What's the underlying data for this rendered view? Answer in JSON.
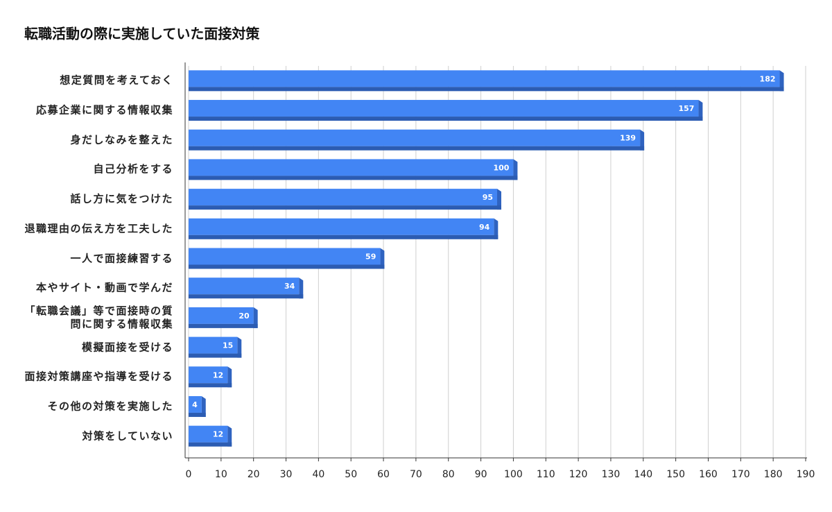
{
  "chart_data": {
    "type": "bar",
    "orientation": "horizontal",
    "title": "転職活動の際に実施していた面接対策",
    "categories": [
      "想定質問を考えておく",
      "応募企業に関する情報収集",
      "身だしなみを整えた",
      "自己分析をする",
      "話し方に気をつけた",
      "退職理由の伝え方を工夫した",
      "一人で面接練習する",
      "本やサイト・動画で学んだ",
      "「転職会議」等で面接時の質問に関する情報収集",
      "模擬面接を受ける",
      "面接対策講座や指導を受ける",
      "その他の対策を実施した",
      "対策をしていない"
    ],
    "values": [
      182,
      157,
      139,
      100,
      95,
      94,
      59,
      34,
      20,
      15,
      12,
      4,
      12
    ],
    "color": "#4285f4",
    "xlim": [
      0,
      190
    ],
    "xticks": [
      0,
      10,
      20,
      30,
      40,
      50,
      60,
      70,
      80,
      90,
      100,
      110,
      120,
      130,
      140,
      150,
      160,
      170,
      180,
      190
    ],
    "grid": true
  }
}
